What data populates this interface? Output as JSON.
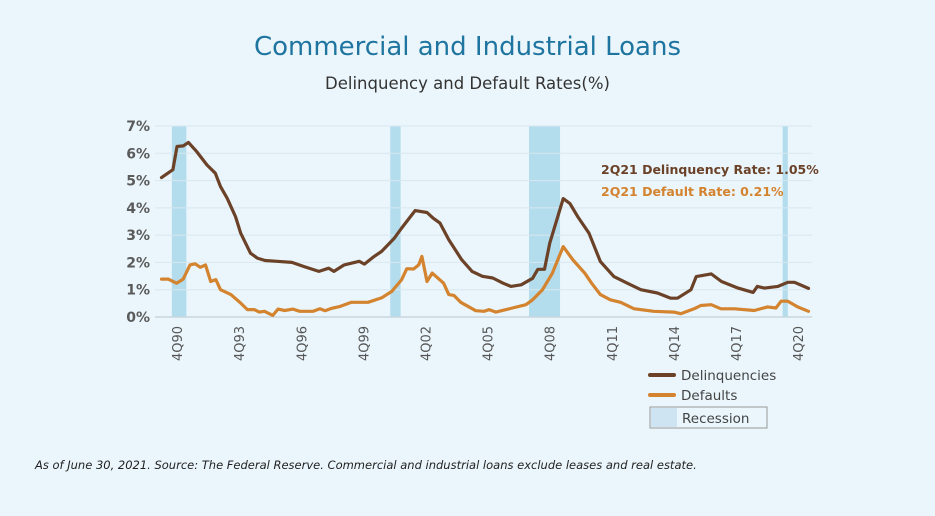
{
  "chart_data": {
    "type": "line",
    "title": "Commercial and Industrial Loans",
    "subtitle": "Delinquency and Default Rates(%)",
    "x_unit": "quarter index (0 = 1Q90, 125 = 2Q21)",
    "x_range": [
      0,
      125
    ],
    "ylim": [
      0,
      7
    ],
    "y_ticks": [
      "0%",
      "1%",
      "2%",
      "3%",
      "4%",
      "5%",
      "6%",
      "7%"
    ],
    "x_ticks": [
      {
        "q": 3,
        "label": "4Q90"
      },
      {
        "q": 15,
        "label": "4Q93"
      },
      {
        "q": 27,
        "label": "4Q96"
      },
      {
        "q": 39,
        "label": "4Q99"
      },
      {
        "q": 51,
        "label": "4Q02"
      },
      {
        "q": 63,
        "label": "4Q05"
      },
      {
        "q": 75,
        "label": "4Q08"
      },
      {
        "q": 87,
        "label": "4Q11"
      },
      {
        "q": 99,
        "label": "4Q14"
      },
      {
        "q": 111,
        "label": "4Q17"
      },
      {
        "q": 123,
        "label": "4Q20"
      }
    ],
    "grid": true,
    "recessions": [
      [
        2,
        4.8
      ],
      [
        44.2,
        46.2
      ],
      [
        71,
        77
      ],
      [
        120,
        121
      ]
    ],
    "series": [
      {
        "name": "Delinquencies",
        "color": "#6b4228",
        "points": [
          [
            0,
            5.11
          ],
          [
            2.2,
            5.4
          ],
          [
            3,
            6.25
          ],
          [
            4.2,
            6.27
          ],
          [
            5.2,
            6.4
          ],
          [
            6.8,
            6.06
          ],
          [
            8.8,
            5.57
          ],
          [
            10.4,
            5.27
          ],
          [
            11.4,
            4.78
          ],
          [
            12.7,
            4.35
          ],
          [
            14.3,
            3.68
          ],
          [
            15.3,
            3.07
          ],
          [
            17.2,
            2.34
          ],
          [
            18.5,
            2.16
          ],
          [
            20,
            2.07
          ],
          [
            22.3,
            2.04
          ],
          [
            25.2,
            2.0
          ],
          [
            27.5,
            1.85
          ],
          [
            30.4,
            1.67
          ],
          [
            32.3,
            1.79
          ],
          [
            33.3,
            1.67
          ],
          [
            35.3,
            1.91
          ],
          [
            38.2,
            2.04
          ],
          [
            39.2,
            1.94
          ],
          [
            41.1,
            2.22
          ],
          [
            42.5,
            2.4
          ],
          [
            45,
            2.89
          ],
          [
            46.4,
            3.26
          ],
          [
            49,
            3.9
          ],
          [
            51.3,
            3.83
          ],
          [
            52.5,
            3.62
          ],
          [
            53.8,
            3.44
          ],
          [
            55.5,
            2.83
          ],
          [
            58,
            2.1
          ],
          [
            60,
            1.67
          ],
          [
            62,
            1.49
          ],
          [
            64,
            1.43
          ],
          [
            66,
            1.24
          ],
          [
            67.5,
            1.12
          ],
          [
            69.5,
            1.18
          ],
          [
            71.7,
            1.42
          ],
          [
            72.7,
            1.75
          ],
          [
            74,
            1.75
          ],
          [
            75,
            2.7
          ],
          [
            77.6,
            4.34
          ],
          [
            78.9,
            4.16
          ],
          [
            80.4,
            3.68
          ],
          [
            82.6,
            3.07
          ],
          [
            84.8,
            2.03
          ],
          [
            87.4,
            1.48
          ],
          [
            90,
            1.24
          ],
          [
            92.6,
            1.0
          ],
          [
            95.8,
            0.88
          ],
          [
            98.4,
            0.69
          ],
          [
            99.7,
            0.69
          ],
          [
            102.3,
            1.0
          ],
          [
            103.3,
            1.48
          ],
          [
            106.2,
            1.58
          ],
          [
            108.2,
            1.3
          ],
          [
            111.4,
            1.06
          ],
          [
            114.3,
            0.9
          ],
          [
            115.1,
            1.12
          ],
          [
            116.5,
            1.06
          ],
          [
            119.1,
            1.12
          ],
          [
            121,
            1.27
          ],
          [
            122.3,
            1.27
          ],
          [
            125,
            1.05
          ]
        ]
      },
      {
        "name": "Defaults",
        "color": "#d4832f",
        "points": [
          [
            0,
            1.39
          ],
          [
            1.3,
            1.39
          ],
          [
            2.9,
            1.24
          ],
          [
            4.2,
            1.39
          ],
          [
            5.5,
            1.91
          ],
          [
            6.5,
            1.95
          ],
          [
            7.5,
            1.82
          ],
          [
            8.5,
            1.91
          ],
          [
            9.5,
            1.3
          ],
          [
            10.5,
            1.37
          ],
          [
            11.4,
            1.0
          ],
          [
            13.4,
            0.82
          ],
          [
            15.3,
            0.51
          ],
          [
            16.6,
            0.27
          ],
          [
            17.9,
            0.27
          ],
          [
            18.9,
            0.18
          ],
          [
            19.9,
            0.21
          ],
          [
            21.5,
            0.06
          ],
          [
            22.5,
            0.29
          ],
          [
            23.8,
            0.24
          ],
          [
            25.4,
            0.29
          ],
          [
            26.7,
            0.21
          ],
          [
            29.3,
            0.21
          ],
          [
            30.6,
            0.3
          ],
          [
            31.6,
            0.23
          ],
          [
            32.9,
            0.32
          ],
          [
            34.5,
            0.39
          ],
          [
            36.7,
            0.54
          ],
          [
            39.9,
            0.54
          ],
          [
            42.5,
            0.7
          ],
          [
            44.5,
            0.94
          ],
          [
            46.4,
            1.37
          ],
          [
            47.4,
            1.77
          ],
          [
            48.7,
            1.76
          ],
          [
            49.7,
            1.91
          ],
          [
            50.3,
            2.22
          ],
          [
            51.3,
            1.3
          ],
          [
            52.3,
            1.61
          ],
          [
            54.5,
            1.24
          ],
          [
            55.5,
            0.82
          ],
          [
            56.5,
            0.79
          ],
          [
            57.8,
            0.54
          ],
          [
            60.7,
            0.23
          ],
          [
            62.3,
            0.21
          ],
          [
            63.3,
            0.27
          ],
          [
            64.6,
            0.18
          ],
          [
            67.8,
            0.33
          ],
          [
            70.4,
            0.45
          ],
          [
            71.7,
            0.63
          ],
          [
            73.6,
            1.0
          ],
          [
            75.5,
            1.6
          ],
          [
            77.6,
            2.58
          ],
          [
            79.5,
            2.09
          ],
          [
            81.8,
            1.6
          ],
          [
            83.1,
            1.24
          ],
          [
            84.8,
            0.82
          ],
          [
            86.7,
            0.63
          ],
          [
            88.7,
            0.54
          ],
          [
            91.3,
            0.3
          ],
          [
            95.1,
            0.21
          ],
          [
            99,
            0.18
          ],
          [
            100.3,
            0.12
          ],
          [
            102.9,
            0.3
          ],
          [
            104.2,
            0.42
          ],
          [
            106.2,
            0.45
          ],
          [
            108.1,
            0.3
          ],
          [
            110.7,
            0.3
          ],
          [
            114.5,
            0.24
          ],
          [
            117.1,
            0.37
          ],
          [
            118.7,
            0.33
          ],
          [
            119.7,
            0.58
          ],
          [
            121,
            0.58
          ],
          [
            122.9,
            0.37
          ],
          [
            125,
            0.21
          ]
        ]
      }
    ],
    "annotations": {
      "delinquency": "2Q21 Delinquency Rate: 1.05%",
      "default": "2Q21 Default Rate: 0.21%"
    },
    "legend": {
      "position": "bottom-right",
      "items": [
        "Delinquencies",
        "Defaults",
        "Recession"
      ]
    },
    "recession_color": "#b3dced"
  },
  "footnote": "As of June 30, 2021. Source: The Federal Reserve. Commercial and industrial loans exclude leases and real estate."
}
